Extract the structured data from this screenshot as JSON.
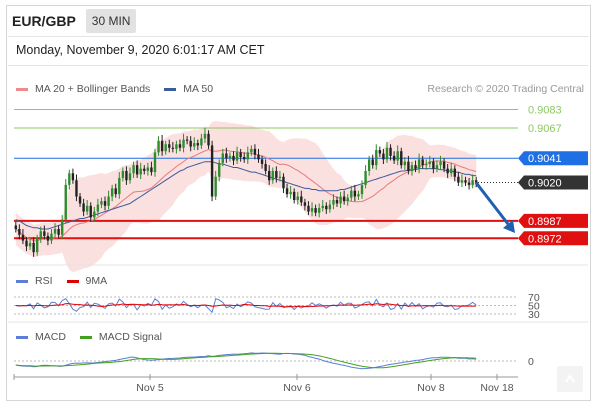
{
  "header": {
    "symbol": "EUR/GBP",
    "timeframe": "30 MIN",
    "datetime": "Monday, November 9, 2020 6:01:17 AM CET"
  },
  "credit": "Research © 2020 Trading Central",
  "legends": {
    "main": [
      {
        "label": "MA 20 + Bollinger Bands",
        "color": "#f08a8a"
      },
      {
        "label": "MA 50",
        "color": "#3b5c9c"
      }
    ],
    "rsi": [
      {
        "label": "RSI",
        "color": "#5b7fd6"
      },
      {
        "label": "9MA",
        "color": "#e00000"
      }
    ],
    "macd": [
      {
        "label": "MACD",
        "color": "#5b7fd6"
      },
      {
        "label": "MACD Signal",
        "color": "#44a020"
      }
    ]
  },
  "chart_data": {
    "type": "candlestick",
    "x_ticks": [
      "Nov 5",
      "Nov 6",
      "Nov 8",
      "Nov 18"
    ],
    "ylim": [
      0.8955,
      0.9092
    ],
    "price_levels": [
      {
        "value": 0.9083,
        "label": "0.9083",
        "color": "#8dc862",
        "type": "resistance"
      },
      {
        "value": 0.9067,
        "label": "0.9067",
        "color": "#8dc862",
        "type": "resistance"
      },
      {
        "value": 0.9041,
        "label": "0.9041",
        "color": "#1f6fe5",
        "type": "pivot"
      },
      {
        "value": 0.902,
        "label": "0.9020",
        "color": "#333333",
        "type": "last"
      },
      {
        "value": 0.8987,
        "label": "0.8987",
        "color": "#e01010",
        "type": "support"
      },
      {
        "value": 0.8972,
        "label": "0.8972",
        "color": "#e01010",
        "type": "support"
      }
    ],
    "closes": [
      0.898,
      0.8975,
      0.897,
      0.8965,
      0.8968,
      0.896,
      0.8972,
      0.8978,
      0.8974,
      0.897,
      0.8976,
      0.898,
      0.8975,
      0.8988,
      0.9018,
      0.9028,
      0.9022,
      0.9008,
      0.9002,
      0.8995,
      0.9,
      0.899,
      0.8995,
      0.9001,
      0.9004,
      0.9,
      0.9008,
      0.9015,
      0.901,
      0.9024,
      0.903,
      0.9022,
      0.9028,
      0.9035,
      0.9027,
      0.9032,
      0.903,
      0.9033,
      0.9029,
      0.9046,
      0.9056,
      0.9047,
      0.9053,
      0.905,
      0.9049,
      0.9053,
      0.905,
      0.9057,
      0.9056,
      0.9051,
      0.9054,
      0.9052,
      0.9058,
      0.9062,
      0.9052,
      0.9008,
      0.9025,
      0.9037,
      0.9045,
      0.9041,
      0.9043,
      0.9039,
      0.9046,
      0.9042,
      0.904,
      0.9046,
      0.9049,
      0.9044,
      0.904,
      0.9036,
      0.903,
      0.9022,
      0.903,
      0.9024,
      0.9025,
      0.9015,
      0.901,
      0.9012,
      0.9005,
      0.9008,
      0.9003,
      0.9,
      0.8995,
      0.8998,
      0.8994,
      0.8998,
      0.9,
      0.8997,
      0.9001,
      0.9005,
      0.9002,
      0.9008,
      0.9004,
      0.9007,
      0.9013,
      0.9008,
      0.901,
      0.9018,
      0.903,
      0.904,
      0.9035,
      0.9048,
      0.9045,
      0.904,
      0.905,
      0.9043,
      0.9039,
      0.9047,
      0.9035,
      0.9038,
      0.903,
      0.9035,
      0.9032,
      0.904,
      0.9035,
      0.9036,
      0.9038,
      0.9032,
      0.9035,
      0.9038,
      0.9032,
      0.9028,
      0.9032,
      0.9025,
      0.902,
      0.9022,
      0.902,
      0.9018,
      0.9022,
      0.902
    ],
    "ma50": [
      0.8988,
      0.8987,
      0.8985,
      0.8983,
      0.8982,
      0.8981,
      0.8981,
      0.898,
      0.898,
      0.898,
      0.8981,
      0.8982,
      0.8983,
      0.8984,
      0.8985,
      0.8986,
      0.8987,
      0.8988,
      0.8989,
      0.8989,
      0.899,
      0.8991,
      0.8992,
      0.8993,
      0.8994,
      0.8995,
      0.8996,
      0.8997,
      0.8998,
      0.8999,
      0.9,
      0.9001,
      0.9002,
      0.9004,
      0.9006,
      0.9008,
      0.901,
      0.9012,
      0.9014,
      0.9016,
      0.9018,
      0.902,
      0.9022,
      0.9024,
      0.9026,
      0.9028,
      0.903,
      0.9031,
      0.9033,
      0.9034,
      0.9035,
      0.9036,
      0.9037,
      0.9038,
      0.9038,
      0.9038,
      0.9037,
      0.9036,
      0.9036,
      0.9035,
      0.9034,
      0.9033,
      0.9033,
      0.9032,
      0.9031,
      0.903,
      0.9029,
      0.9029,
      0.9028,
      0.9027,
      0.9026,
      0.9025,
      0.9024,
      0.9023,
      0.9022,
      0.9021,
      0.902,
      0.9019,
      0.9018,
      0.9017,
      0.9016,
      0.9015,
      0.9015,
      0.9014,
      0.9014,
      0.9013,
      0.9013,
      0.9013,
      0.9013,
      0.9013,
      0.9013,
      0.9014,
      0.9014,
      0.9015,
      0.9016,
      0.9017,
      0.9018,
      0.9019,
      0.902,
      0.9021,
      0.9022,
      0.9023,
      0.9024,
      0.9025,
      0.9026,
      0.9027,
      0.9028,
      0.9029,
      0.903,
      0.903,
      0.9031,
      0.9031,
      0.9031,
      0.9032,
      0.9032,
      0.9032,
      0.9032,
      0.9032,
      0.9032,
      0.9031,
      0.9031,
      0.903,
      0.903,
      0.9029,
      0.9029,
      0.9028,
      0.9027,
      0.9027,
      0.9026,
      0.9026
    ],
    "rsi_levels": [
      70,
      50,
      30
    ],
    "macd_levels": [
      0
    ],
    "forecast_arrow": {
      "from": 0.902,
      "to": 0.898,
      "color": "#2060b0"
    }
  }
}
